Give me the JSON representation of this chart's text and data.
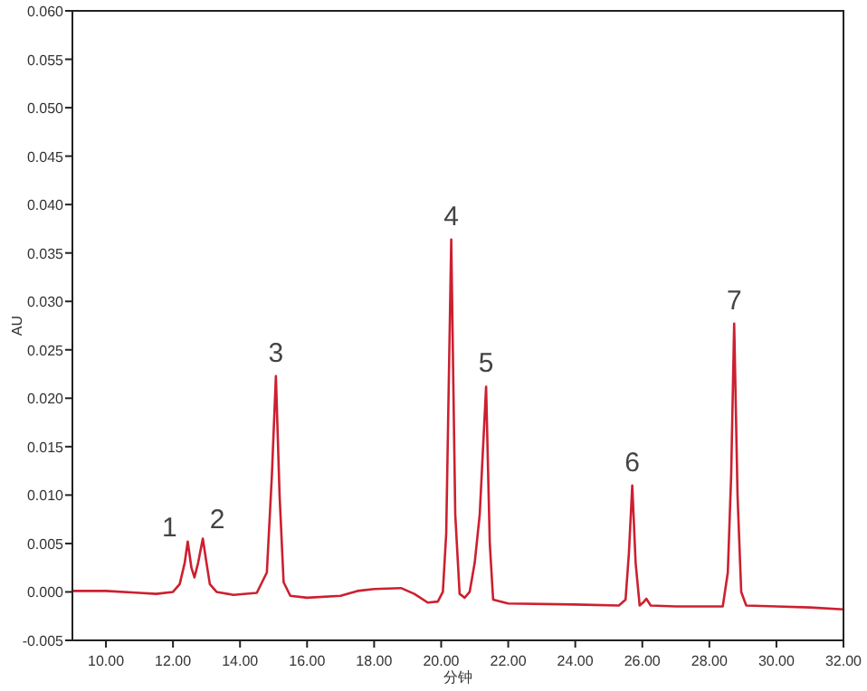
{
  "chart_data": {
    "type": "line",
    "xlabel": "分钟",
    "ylabel": "AU",
    "x": [
      9.0,
      10.0,
      11.0,
      11.5,
      12.0,
      12.2,
      12.35,
      12.44,
      12.55,
      12.64,
      12.75,
      12.89,
      13.0,
      13.1,
      13.3,
      13.8,
      14.5,
      14.8,
      14.95,
      15.07,
      15.18,
      15.3,
      15.5,
      16.0,
      17.0,
      17.5,
      18.0,
      18.8,
      19.2,
      19.6,
      19.9,
      20.05,
      20.15,
      20.3,
      20.42,
      20.55,
      20.7,
      20.85,
      21.0,
      21.15,
      21.34,
      21.45,
      21.55,
      22.0,
      24.0,
      25.3,
      25.5,
      25.6,
      25.7,
      25.8,
      25.92,
      26.05,
      26.12,
      26.25,
      27.0,
      28.4,
      28.55,
      28.65,
      28.74,
      28.84,
      28.95,
      29.1,
      30.0,
      31.0,
      32.0
    ],
    "series": [
      {
        "color": "#cc2030",
        "values": [
          0.0001,
          0.0001,
          -0.0001,
          -0.0002,
          0.0,
          0.0008,
          0.003,
          0.0052,
          0.0025,
          0.0015,
          0.003,
          0.0055,
          0.003,
          0.0008,
          0.0,
          -0.0003,
          -0.0001,
          0.002,
          0.012,
          0.0223,
          0.01,
          0.001,
          -0.0004,
          -0.0006,
          -0.0004,
          0.0001,
          0.0003,
          0.0004,
          -0.0002,
          -0.0011,
          -0.001,
          0.0,
          0.006,
          0.0364,
          0.008,
          -0.0002,
          -0.0006,
          0.0,
          0.003,
          0.008,
          0.0212,
          0.005,
          -0.0008,
          -0.0012,
          -0.0013,
          -0.0014,
          -0.0008,
          0.004,
          0.011,
          0.003,
          -0.0014,
          -0.001,
          -0.0007,
          -0.0014,
          -0.0015,
          -0.0015,
          0.002,
          0.012,
          0.0277,
          0.01,
          0.0,
          -0.0014,
          -0.0015,
          -0.0016,
          -0.0018
        ]
      }
    ],
    "xlim": [
      9.0,
      32.0
    ],
    "ylim": [
      -0.005,
      0.06
    ],
    "xticks": [
      {
        "value": 10,
        "label": "10.00"
      },
      {
        "value": 12,
        "label": "12.00"
      },
      {
        "value": 14,
        "label": "14.00"
      },
      {
        "value": 16,
        "label": "16.00"
      },
      {
        "value": 18,
        "label": "18.00"
      },
      {
        "value": 20,
        "label": "20.00"
      },
      {
        "value": 22,
        "label": "22.00"
      },
      {
        "value": 24,
        "label": "24.00"
      },
      {
        "value": 26,
        "label": "26.00"
      },
      {
        "value": 28,
        "label": "28.00"
      },
      {
        "value": 30,
        "label": "30.00"
      },
      {
        "value": 32,
        "label": "32.00"
      }
    ],
    "yticks": [
      {
        "value": -0.005,
        "label": "-0.005"
      },
      {
        "value": 0,
        "label": "0.000"
      },
      {
        "value": 0.005,
        "label": "0.005"
      },
      {
        "value": 0.01,
        "label": "0.010"
      },
      {
        "value": 0.015,
        "label": "0.015"
      },
      {
        "value": 0.02,
        "label": "0.020"
      },
      {
        "value": 0.025,
        "label": "0.025"
      },
      {
        "value": 0.03,
        "label": "0.030"
      },
      {
        "value": 0.035,
        "label": "0.035"
      },
      {
        "value": 0.04,
        "label": "0.040"
      },
      {
        "value": 0.045,
        "label": "0.045"
      },
      {
        "value": 0.05,
        "label": "0.050"
      },
      {
        "value": 0.055,
        "label": "0.055"
      },
      {
        "value": 0.06,
        "label": "0.060"
      }
    ],
    "annotations": [
      {
        "text": "1",
        "x": 12.44,
        "y": 0.0052
      },
      {
        "text": "2",
        "x": 12.89,
        "y": 0.0055
      },
      {
        "text": "3",
        "x": 15.07,
        "y": 0.0223
      },
      {
        "text": "4",
        "x": 20.3,
        "y": 0.0364
      },
      {
        "text": "5",
        "x": 21.34,
        "y": 0.0212
      },
      {
        "text": "6",
        "x": 25.7,
        "y": 0.011
      },
      {
        "text": "7",
        "x": 28.74,
        "y": 0.0277
      }
    ],
    "grid": false,
    "marker": "none",
    "line_style": "solid"
  }
}
